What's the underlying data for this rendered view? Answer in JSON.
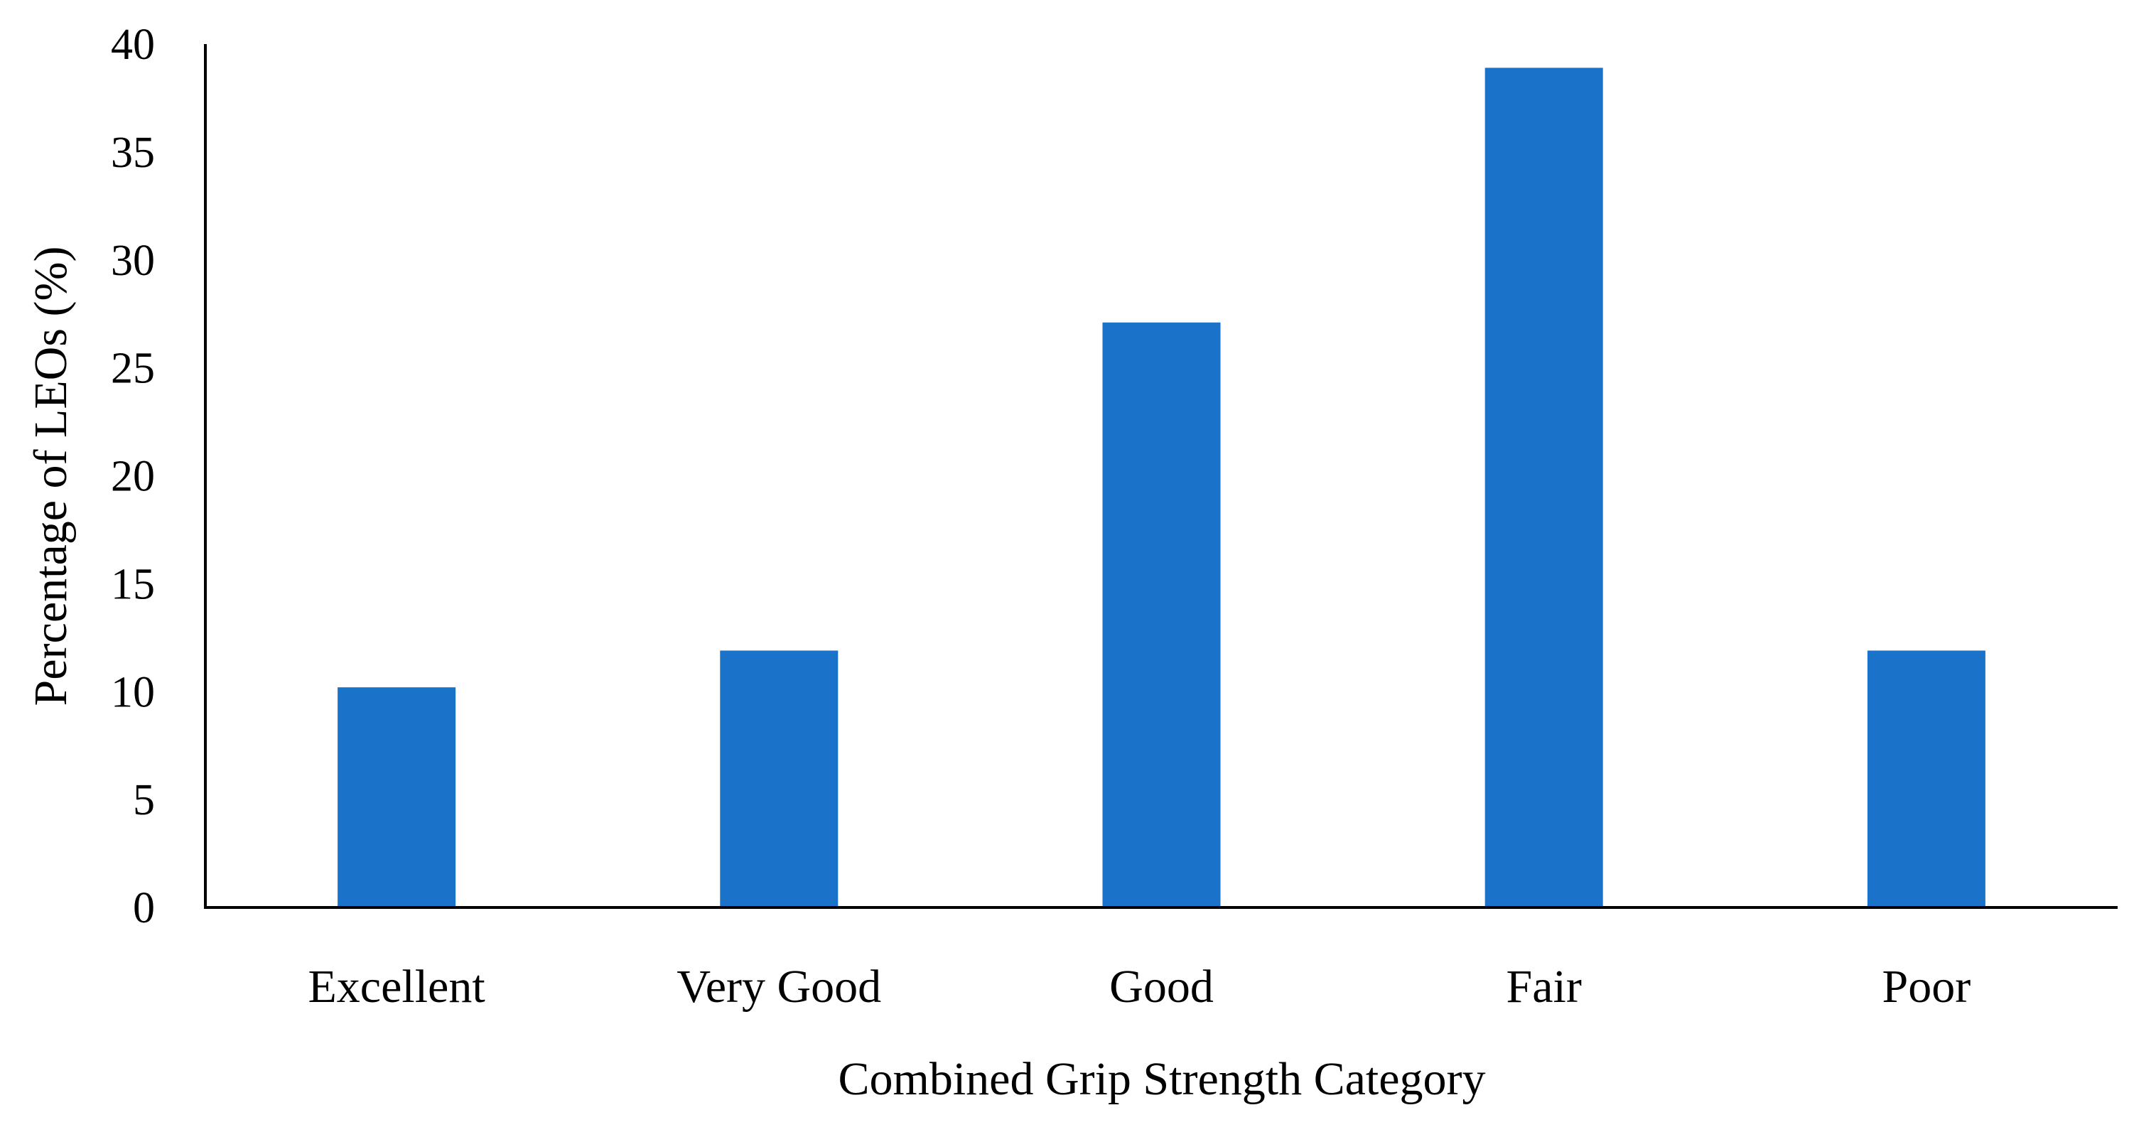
{
  "chart_data": {
    "type": "bar",
    "title": "",
    "xlabel": "Combined Grip Strength Category",
    "ylabel": "Percentage of LEOs (%)",
    "categories": [
      "Excellent",
      "Very Good",
      "Good",
      "Fair",
      "Poor"
    ],
    "values": [
      10.2,
      11.9,
      27.1,
      38.9,
      11.9
    ],
    "ylim": [
      0,
      40
    ],
    "yticks": [
      "0",
      "5",
      "10",
      "15",
      "20",
      "25",
      "30",
      "35",
      "40"
    ],
    "grid": false,
    "legend": "none",
    "colors": {
      "bar": "#1a72c9",
      "axis": "#000000",
      "background": "#ffffff"
    }
  }
}
